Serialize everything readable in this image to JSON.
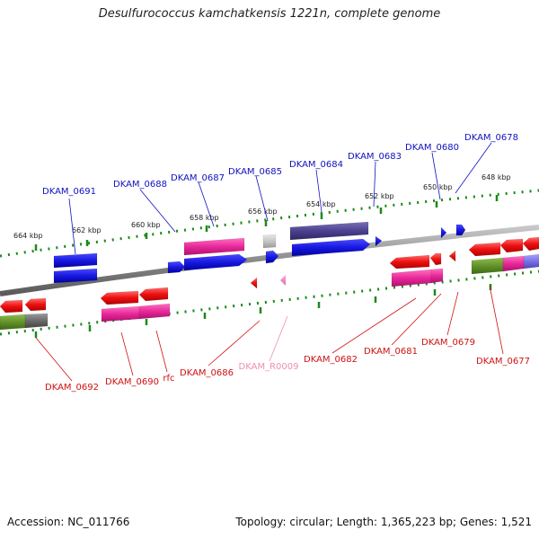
{
  "title": "Desulfurococcus kamchatkensis 1221n, complete genome",
  "footer": {
    "accession": "Accession: NC_011766",
    "summary": "Topology: circular; Length: 1,365,223 bp; Genes: 1,521"
  },
  "colors": {
    "backbone": "#8a8a8a",
    "ticks": "#1a8a1a",
    "label_fwd": "#1010c0",
    "label_rev": "#d01010",
    "label_rna": "#f08cb4"
  },
  "scale_labels": [
    "664 kbp",
    "662 kbp",
    "660 kbp",
    "658 kbp",
    "656 kbp",
    "654 kbp",
    "652 kbp",
    "650 kbp",
    "648 kbp"
  ],
  "genes_top": [
    "DKAM_0691",
    "DKAM_0688",
    "DKAM_0687",
    "DKAM_0685",
    "DKAM_0684",
    "DKAM_0683",
    "DKAM_0680",
    "DKAM_0678"
  ],
  "genes_bottom": [
    "DKAM_0692",
    "DKAM_0690",
    "rfc",
    "DKAM_0686",
    "DKAM_R0009",
    "DKAM_0682",
    "DKAM_0681",
    "DKAM_0679",
    "DKAM_0677"
  ]
}
